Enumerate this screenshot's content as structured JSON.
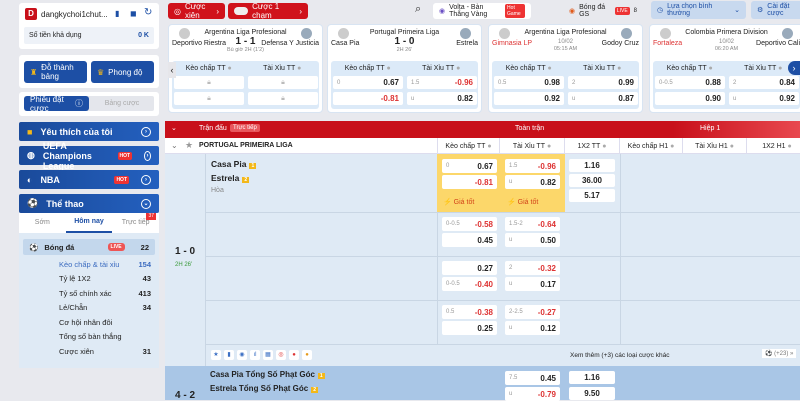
{
  "sidebar": {
    "username": "dangkychoi1chut...",
    "avatar_letter": "D",
    "balance_label": "Số tiền khả dụng",
    "balance": "0 K",
    "leaderboard": "Đỗ thành bảng",
    "form": "Phong độ",
    "betslip_tab": "Phiếu đặt cược",
    "bet_table_tab": "Bảng cược",
    "sections": [
      {
        "label": "Yêu thích của tôi"
      },
      {
        "label": "UEFA Champions League",
        "badge": "HOT"
      },
      {
        "label": "NBA",
        "badge": "HOT"
      },
      {
        "label": "Thể thao"
      }
    ],
    "time_tabs": [
      "Sớm",
      "Hôm nay",
      "Trực tiếp"
    ],
    "live_count": "37",
    "sport": {
      "label": "Bóng đá",
      "badge": "LIVE",
      "count": "22"
    },
    "markets": [
      {
        "label": "Kèo chấp & tài xỉu",
        "count": "154"
      },
      {
        "label": "Tỷ lệ 1X2",
        "count": "43"
      },
      {
        "label": "Tỷ số chính xác",
        "count": "413"
      },
      {
        "label": "Lẻ/Chẵn",
        "count": "34"
      },
      {
        "label": "Cơ hội nhân đôi",
        "count": ""
      },
      {
        "label": "Tổng số bàn thắng",
        "count": ""
      },
      {
        "label": "Cược xiên",
        "count": "31"
      }
    ]
  },
  "topbar": {
    "parlay": "Cược xiên",
    "one_click": "Cược 1 chạm",
    "volta": "Volta - Bàn Thắng Vàng",
    "volta_badge": "Hot Game",
    "gs": "Bóng đá GS",
    "gs_badge": "LIVE",
    "gs_count": "8",
    "mode": "Lựa chọn bình thường",
    "settings": "Cài đặt cược"
  },
  "cards": [
    {
      "league": "Argentina Liga Profesional",
      "home": "Deportivo Riestra",
      "away": "Defensa Y Justicia",
      "score": "1 - 1",
      "time": "Bù giờ 2H",
      "extra": "(1'2)",
      "h1": "Kèo chấp TT",
      "h2": "Tài Xỉu TT",
      "locked": true
    },
    {
      "league": "Portugal Primeira Liga",
      "home": "Casa Pia",
      "away": "Estrela",
      "score": "1 - 0",
      "time": "2H 26'",
      "h1": "Kèo chấp TT",
      "h2": "Tài Xỉu TT",
      "r1": [
        "0",
        "0.67",
        "1.5",
        "-0.96"
      ],
      "r2": [
        "",
        "-0.81",
        "u",
        "0.82"
      ]
    },
    {
      "league": "Argentina Liga Profesional",
      "home": "Gimnasia LP",
      "away": "Godoy Cruz",
      "score": "10/02",
      "time": "05:15 AM",
      "h1": "Kèo chấp TT",
      "h2": "Tài Xỉu TT",
      "r1": [
        "0.5",
        "0.98",
        "2",
        "0.99"
      ],
      "r2": [
        "",
        "0.92",
        "u",
        "0.87"
      ]
    },
    {
      "league": "Colombia Primera Division",
      "home": "Fortaleza",
      "away": "Deportivo Cali",
      "score": "10/02",
      "time": "06:20 AM",
      "h1": "Kèo chấp TT",
      "h2": "Tài Xỉu TT",
      "r1": [
        "0-0.5",
        "0.88",
        "2",
        "0.84"
      ],
      "r2": [
        "",
        "0.90",
        "u",
        "0.92"
      ]
    }
  ],
  "table": {
    "match_label": "Trận đấu",
    "live_tag": "Trực tiếp",
    "full": "Toàn trận",
    "half": "Hiệp 1",
    "league": "PORTUGAL PRIMEIRA LIGA",
    "cols": [
      "Kèo chấp TT",
      "Tài Xỉu TT",
      "1X2 TT",
      "Kèo chấp H1",
      "Tài Xỉu H1",
      "1X2 H1"
    ],
    "home": "Casa Pia",
    "away": "Estrela",
    "draw": "Hòa",
    "score": "1 - 0",
    "time": "2H 26'",
    "best": "Giá tốt",
    "rows": [
      {
        "hl": [
          "0",
          "0.67"
        ],
        "hl2": [
          "",
          "-0.81"
        ],
        "ou": [
          "1.5",
          "-0.96"
        ],
        "ou2": [
          "u",
          "0.82"
        ]
      },
      {
        "hl": [
          "0-0.5",
          "-0.58"
        ],
        "hl2": [
          "",
          "0.45"
        ],
        "ou": [
          "1.5-2",
          "-0.64"
        ],
        "ou2": [
          "u",
          "0.50"
        ]
      },
      {
        "hl": [
          "",
          "0.27"
        ],
        "hl2": [
          "0-0.5",
          "-0.40"
        ],
        "ou": [
          "2",
          "-0.32"
        ],
        "ou2": [
          "u",
          "0.17"
        ]
      },
      {
        "hl": [
          "0.5",
          "-0.38"
        ],
        "hl2": [
          "",
          "0.25"
        ],
        "ou": [
          "2-2.5",
          "-0.27"
        ],
        "ou2": [
          "u",
          "0.12"
        ]
      }
    ],
    "x12": [
      "1.16",
      "36.00",
      "5.17"
    ],
    "more": "Xem thêm (+3) các loại cược khác",
    "more_count": "(+23)",
    "corner": {
      "home": "Casa Pia Tổng Số Phạt Góc",
      "away": "Estrela Tổng Số Phạt Góc",
      "score": "4 - 2",
      "ou": [
        "7.5",
        "0.45"
      ],
      "ou2": [
        "u",
        "-0.79"
      ],
      "x12": [
        "1.16",
        "9.50"
      ]
    }
  }
}
